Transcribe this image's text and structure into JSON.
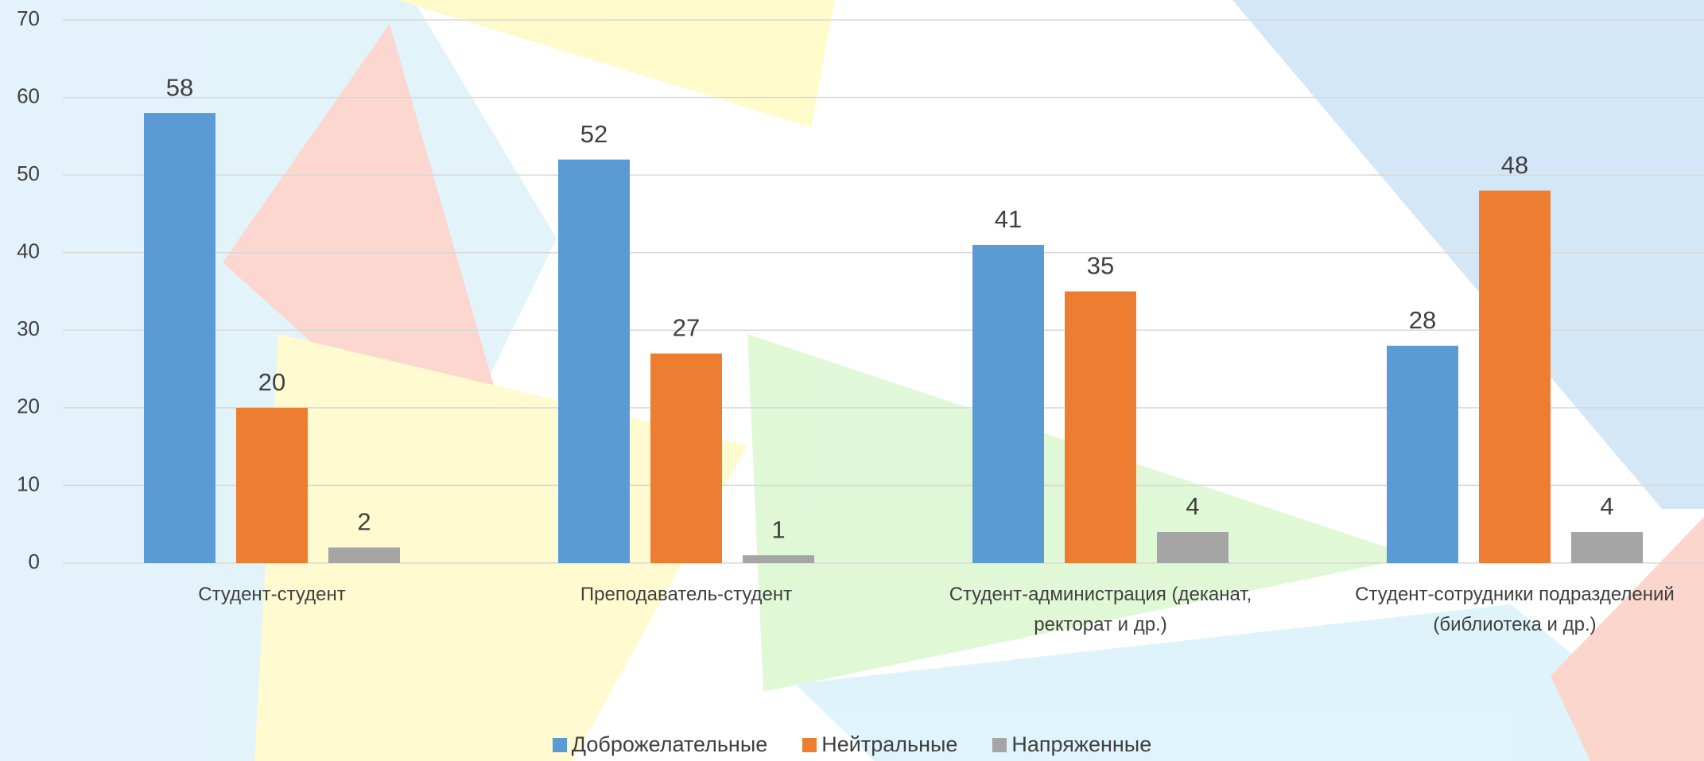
{
  "chart_data": {
    "type": "bar",
    "categories": [
      "Студент-студент",
      "Преподаватель-студент",
      "Студент-администрация (деканат, ректорат и др.)",
      "Студент-сотрудники подразделений (библиотека и др.)"
    ],
    "series": [
      {
        "name": "Доброжелательные",
        "color": "#5b9bd5",
        "values": [
          58,
          52,
          41,
          28
        ]
      },
      {
        "name": "Нейтральные",
        "color": "#ed7d31",
        "values": [
          20,
          27,
          35,
          48
        ]
      },
      {
        "name": "Напряженные",
        "color": "#a5a5a5",
        "values": [
          2,
          1,
          4,
          4
        ]
      }
    ],
    "ylim": [
      0,
      70
    ],
    "yticks": [
      0,
      10,
      20,
      30,
      40,
      50,
      60,
      70
    ],
    "grid": true,
    "legend": "bottom"
  }
}
